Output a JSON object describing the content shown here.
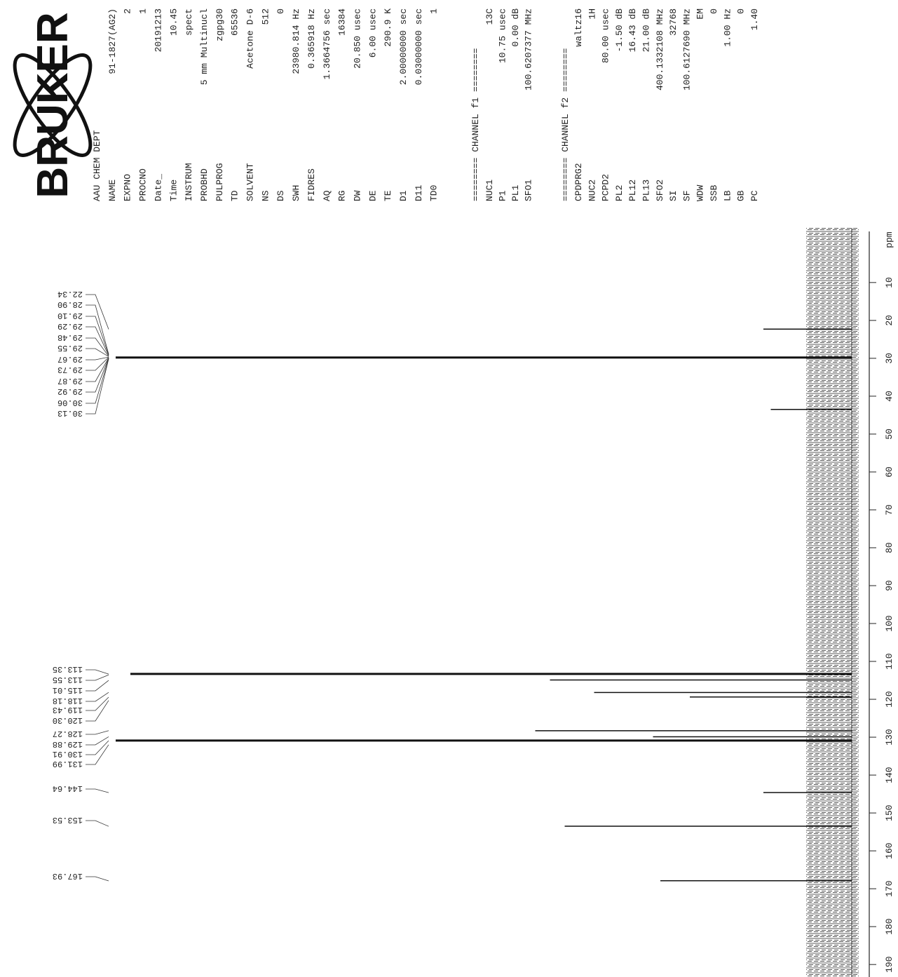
{
  "logo": "BRUKER",
  "parameters": {
    "title": "AAU CHEM DEPT",
    "acquisition": [
      [
        "NAME",
        "91-1827(AG2)"
      ],
      [
        "EXPNO",
        "2"
      ],
      [
        "PROCNO",
        "1"
      ],
      [
        "Date_",
        "20191213"
      ],
      [
        "Time",
        "10.45"
      ],
      [
        "INSTRUM",
        "spect"
      ],
      [
        "PROBHD",
        "5 mm Multinucl"
      ],
      [
        "PULPROG",
        "zgpg30"
      ],
      [
        "TD",
        "65536"
      ],
      [
        "SOLVENT",
        "Acetone D-6"
      ],
      [
        "NS",
        "512"
      ],
      [
        "DS",
        "0"
      ],
      [
        "SWH",
        "23980.814 Hz"
      ],
      [
        "FIDRES",
        "0.365918 Hz"
      ],
      [
        "AQ",
        "1.3664756 sec"
      ],
      [
        "RG",
        "16384"
      ],
      [
        "DW",
        "20.850 usec"
      ],
      [
        "DE",
        "6.00 usec"
      ],
      [
        "TE",
        "290.9 K"
      ],
      [
        "D1",
        "2.00000000 sec"
      ],
      [
        "D11",
        "0.03000000 sec"
      ],
      [
        "TD0",
        "1"
      ]
    ],
    "channel_f1": {
      "title": "======== CHANNEL f1 ========",
      "rows": [
        [
          "NUC1",
          "13C"
        ],
        [
          "P1",
          "10.75 usec"
        ],
        [
          "PL1",
          "0.00 dB"
        ],
        [
          "SFO1",
          "100.6207377 MHz"
        ]
      ]
    },
    "channel_f2": {
      "title": "======== CHANNEL f2 ========",
      "rows": [
        [
          "CPDPRG2",
          "waltz16"
        ],
        [
          "NUC2",
          "1H"
        ],
        [
          "PCPD2",
          "80.00 usec"
        ],
        [
          "PL2",
          "-1.50 dB"
        ],
        [
          "PL12",
          "16.43 dB"
        ],
        [
          "PL13",
          "21.00 dB"
        ],
        [
          "SFO2",
          "400.1332108 MHz"
        ],
        [
          "SI",
          "32768"
        ],
        [
          "SF",
          "100.6127690 MHz"
        ],
        [
          "WDW",
          "EM"
        ],
        [
          "SSB",
          "0"
        ],
        [
          "LB",
          "1.00 Hz"
        ],
        [
          "GB",
          "0"
        ],
        [
          "PC",
          "1.40"
        ]
      ]
    }
  },
  "chart_data": {
    "type": "nmr",
    "x_label": "ppm",
    "color": "#111111",
    "xlim": [
      -2,
      192
    ],
    "xticks": [
      10,
      20,
      30,
      40,
      50,
      60,
      70,
      80,
      90,
      100,
      110,
      120,
      130,
      140,
      150,
      160,
      170,
      180,
      190
    ],
    "x": [
      22.3,
      29.8,
      43.5,
      113.3,
      114.9,
      118.2,
      119.4,
      128.3,
      129.9,
      130.9,
      144.6,
      153.5,
      167.9
    ],
    "values": [
      12,
      100,
      11,
      98,
      41,
      35,
      22,
      43,
      27,
      100,
      12,
      39,
      26
    ],
    "peak_labels": [
      "22.34",
      "28.90",
      "29.10",
      "29.29",
      "29.48",
      "29.55",
      "29.67",
      "29.73",
      "29.87",
      "29.92",
      "30.06",
      "30.13",
      "113.35",
      "113.55",
      "115.01",
      "118.18",
      "119.43",
      "120.30",
      "128.27",
      "129.88",
      "130.91",
      "131.99",
      "144.64",
      "153.53",
      "167.93"
    ]
  }
}
